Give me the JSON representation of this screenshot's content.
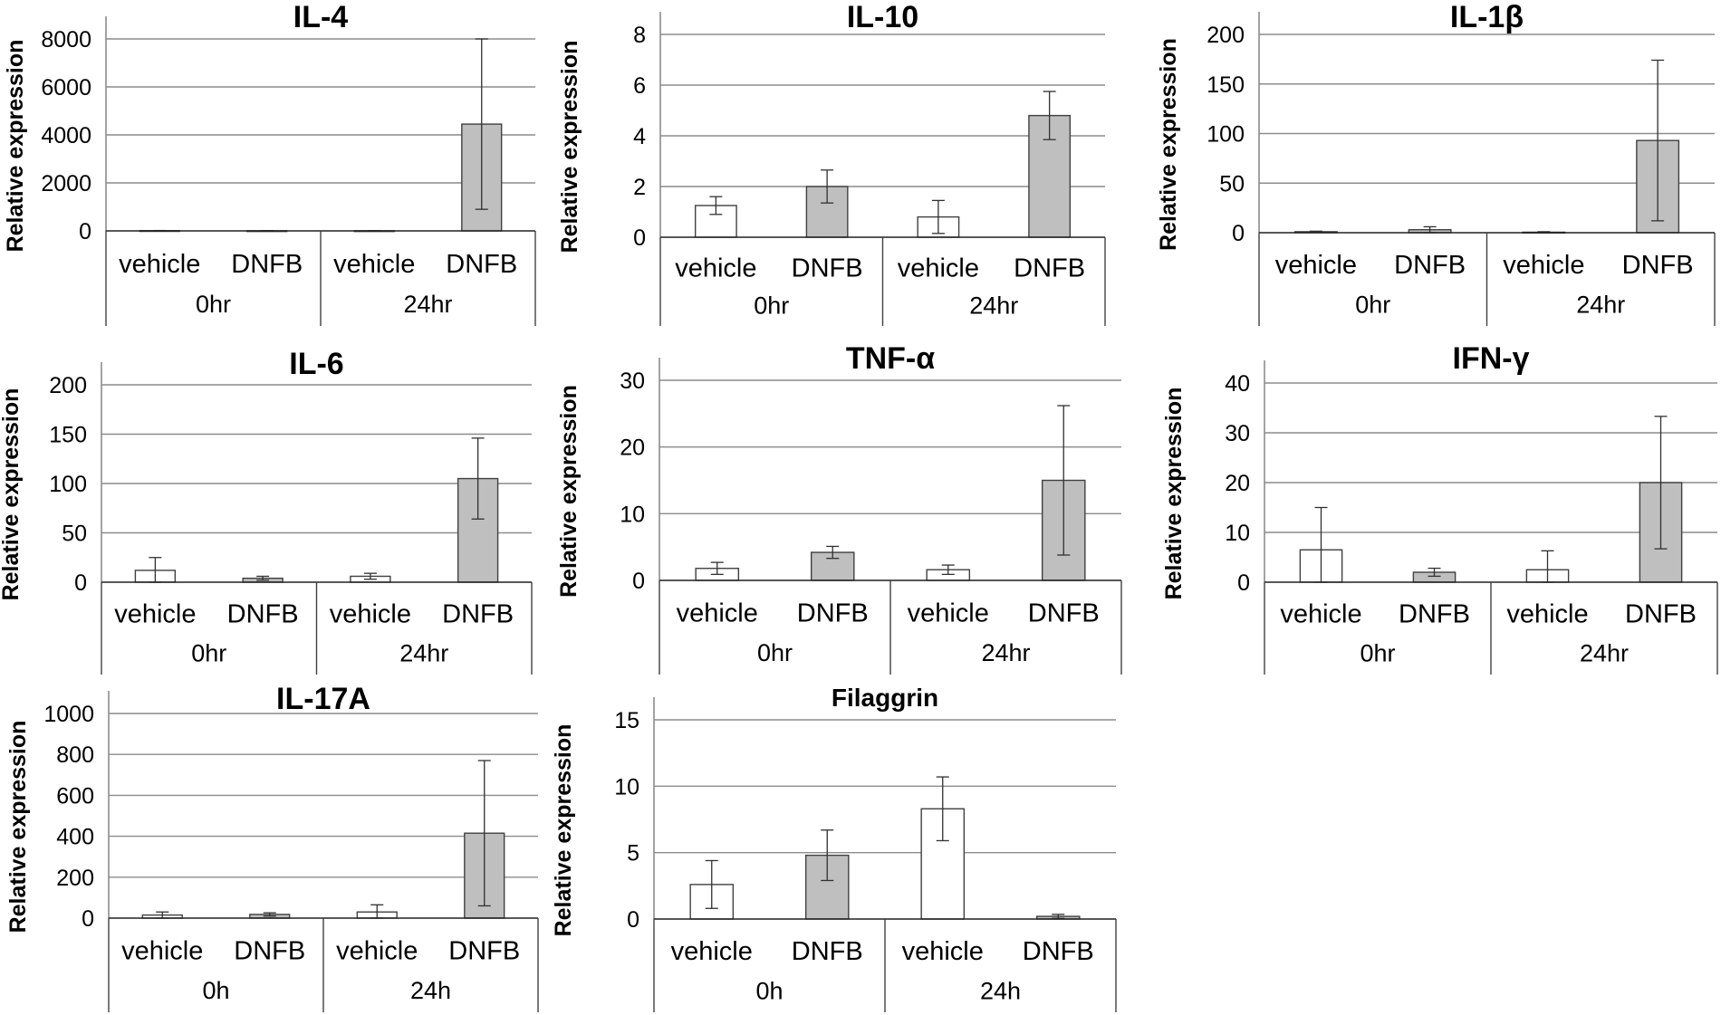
{
  "figure": {
    "bar_colors": {
      "vehicle": "#ffffff",
      "DNFB": "#bfbfbf"
    },
    "edge_color": "#404040",
    "grid_color": "#8c8c8c",
    "text_color": "#000000"
  },
  "chart_data": [
    {
      "type": "bar",
      "title": "IL-4",
      "ylabel": "Relative expression",
      "ylim": [
        0,
        8000
      ],
      "yticks": [
        0,
        2000,
        4000,
        6000,
        8000
      ],
      "grid": true,
      "categories": [
        "vehicle",
        "DNFB",
        "vehicle",
        "DNFB"
      ],
      "groups": [
        "0hr",
        "24hr"
      ],
      "values": [
        10,
        5,
        5,
        4450
      ],
      "errors": [
        5,
        3,
        3,
        3550
      ]
    },
    {
      "type": "bar",
      "title": "IL-10",
      "ylabel": "Relative expression",
      "ylim": [
        0,
        8
      ],
      "yticks": [
        0,
        2,
        4,
        6,
        8
      ],
      "grid": true,
      "categories": [
        "vehicle",
        "DNFB",
        "vehicle",
        "DNFB"
      ],
      "groups": [
        "0hr",
        "24hr"
      ],
      "values": [
        1.25,
        2.0,
        0.8,
        4.8
      ],
      "errors": [
        0.35,
        0.65,
        0.65,
        0.95
      ]
    },
    {
      "type": "bar",
      "title": "IL-1β",
      "ylabel": "Relative expression",
      "ylim": [
        0,
        200
      ],
      "yticks": [
        0,
        50,
        100,
        150,
        200
      ],
      "grid": true,
      "categories": [
        "vehicle",
        "DNFB",
        "vehicle",
        "DNFB"
      ],
      "groups": [
        "0hr",
        "24hr"
      ],
      "values": [
        1,
        3,
        0.5,
        93
      ],
      "errors": [
        0.5,
        3,
        0.5,
        81
      ]
    },
    {
      "type": "bar",
      "title": "IL-6",
      "ylabel": "Relative expression",
      "ylim": [
        0,
        200
      ],
      "yticks": [
        0,
        50,
        100,
        150,
        200
      ],
      "grid": true,
      "categories": [
        "vehicle",
        "DNFB",
        "vehicle",
        "DNFB"
      ],
      "groups": [
        "0hr",
        "24hr"
      ],
      "values": [
        12,
        4,
        6,
        105
      ],
      "errors": [
        13,
        2,
        3,
        41
      ]
    },
    {
      "type": "bar",
      "title": "TNF-α",
      "ylabel": "Relative expression",
      "ylim": [
        0,
        30
      ],
      "yticks": [
        0,
        10,
        20,
        30
      ],
      "grid": true,
      "categories": [
        "vehicle",
        "DNFB",
        "vehicle",
        "DNFB"
      ],
      "groups": [
        "0hr",
        "24hr"
      ],
      "values": [
        1.8,
        4.2,
        1.6,
        15
      ],
      "errors": [
        0.9,
        0.9,
        0.7,
        11.2
      ]
    },
    {
      "type": "bar",
      "title": "IFN-γ",
      "ylabel": "Relative expression",
      "ylim": [
        0,
        40
      ],
      "yticks": [
        0,
        10,
        20,
        30,
        40
      ],
      "grid": true,
      "categories": [
        "vehicle",
        "DNFB",
        "vehicle",
        "DNFB"
      ],
      "groups": [
        "0hr",
        "24hr"
      ],
      "values": [
        6.5,
        2.0,
        2.5,
        20
      ],
      "errors": [
        8.5,
        0.8,
        3.8,
        13.3
      ]
    },
    {
      "type": "bar",
      "title": "IL-17A",
      "ylabel": "Relative expression",
      "ylim": [
        0,
        1000
      ],
      "yticks": [
        0,
        200,
        400,
        600,
        800,
        1000
      ],
      "grid": true,
      "categories": [
        "vehicle",
        "DNFB",
        "vehicle",
        "DNFB"
      ],
      "groups": [
        "0h",
        "24h"
      ],
      "values": [
        15,
        18,
        30,
        415
      ],
      "errors": [
        15,
        8,
        35,
        355
      ]
    },
    {
      "type": "bar",
      "title": "Filaggrin",
      "ylabel": "Relative expression",
      "ylim": [
        0,
        15
      ],
      "yticks": [
        0,
        5,
        10,
        15
      ],
      "grid": true,
      "categories": [
        "vehicle",
        "DNFB",
        "vehicle",
        "DNFB"
      ],
      "groups": [
        "0h",
        "24h"
      ],
      "values": [
        2.6,
        4.8,
        8.3,
        0.2
      ],
      "errors": [
        1.8,
        1.9,
        2.4,
        0.15
      ]
    }
  ]
}
